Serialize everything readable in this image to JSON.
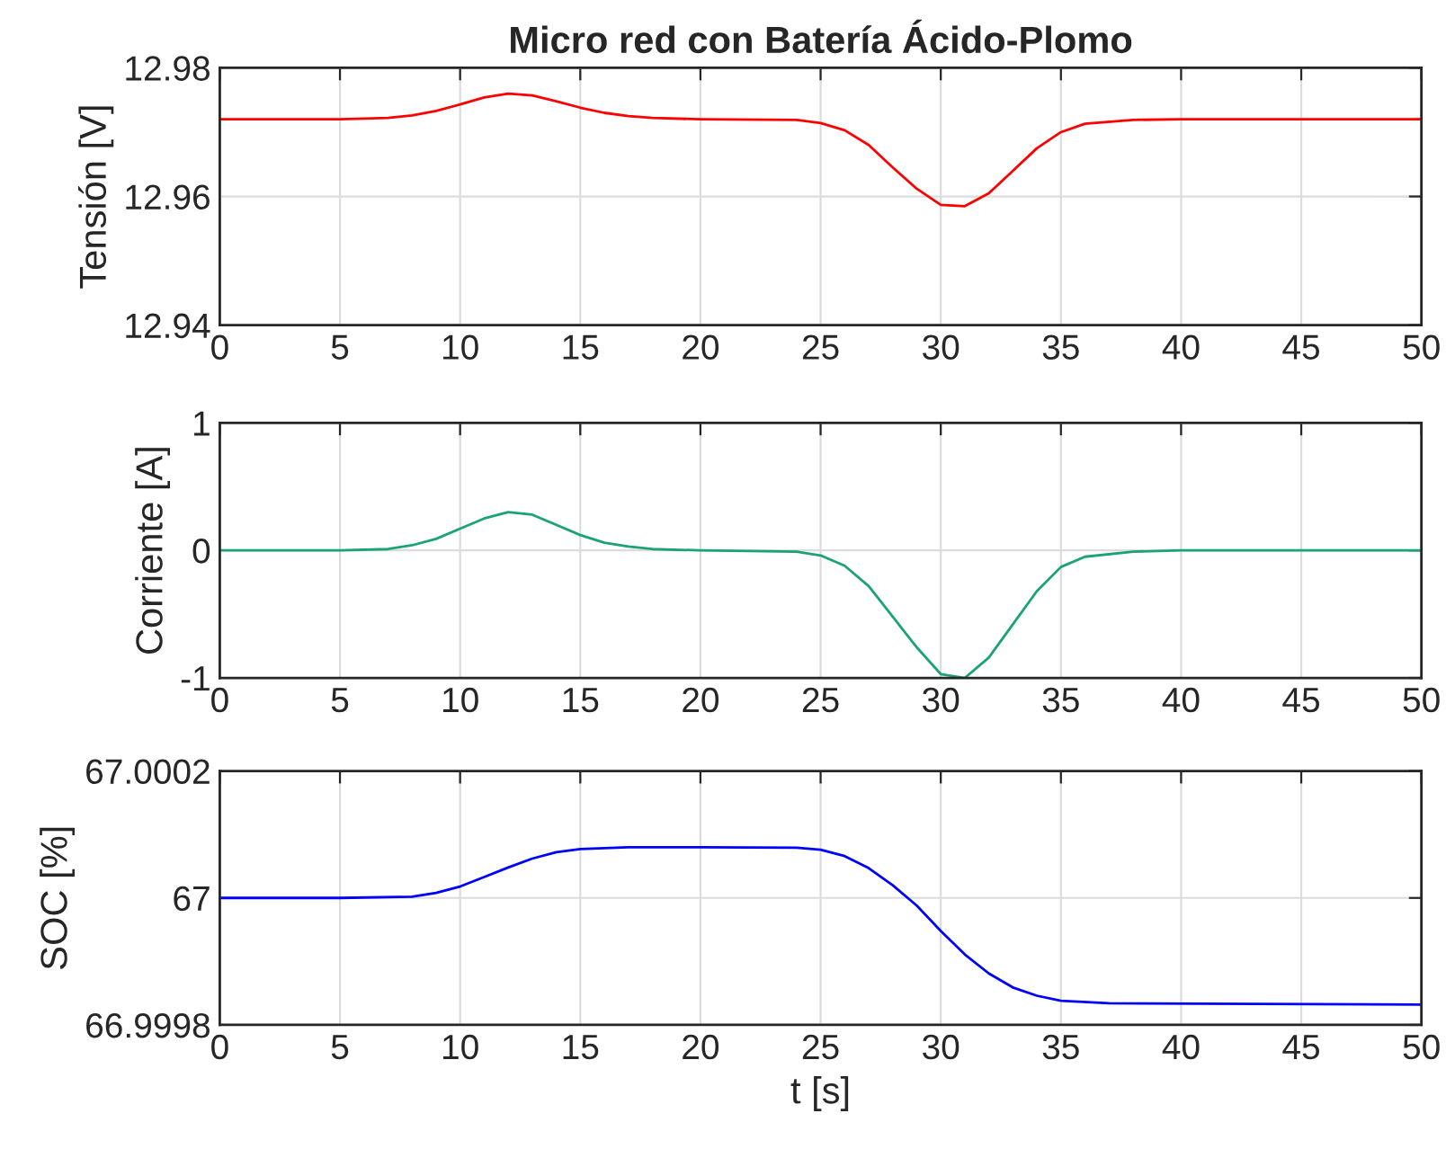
{
  "chart_data": [
    {
      "type": "line",
      "title": "Micro red con Batería Ácido-Plomo",
      "ylabel": "Tensión [V]",
      "xlim": [
        0,
        50
      ],
      "xticks": [
        0,
        5,
        10,
        15,
        20,
        25,
        30,
        35,
        40,
        45,
        50
      ],
      "ylim": [
        12.94,
        12.98
      ],
      "yticks": [
        12.94,
        12.96,
        12.98
      ],
      "grid": true,
      "x": [
        0,
        5,
        7,
        8,
        9,
        10,
        11,
        12,
        13,
        14,
        15,
        16,
        17,
        18,
        20,
        24,
        25,
        26,
        27,
        28,
        29,
        30,
        31,
        32,
        33,
        34,
        35,
        36,
        38,
        40,
        50
      ],
      "series": [
        {
          "color": "#ff0000",
          "values": [
            12.972,
            12.972,
            12.9722,
            12.9726,
            12.9733,
            12.9743,
            12.9754,
            12.976,
            12.9757,
            12.9748,
            12.9738,
            12.973,
            12.9725,
            12.9722,
            12.972,
            12.9719,
            12.9714,
            12.9703,
            12.968,
            12.9645,
            12.9612,
            12.9587,
            12.9585,
            12.9605,
            12.964,
            12.9675,
            12.97,
            12.9713,
            12.9719,
            12.972,
            12.972
          ]
        }
      ]
    },
    {
      "type": "line",
      "ylabel": "Corriente [A]",
      "xlim": [
        0,
        50
      ],
      "xticks": [
        0,
        5,
        10,
        15,
        20,
        25,
        30,
        35,
        40,
        45,
        50
      ],
      "ylim": [
        -1,
        1
      ],
      "yticks": [
        -1,
        0,
        1
      ],
      "grid": true,
      "x": [
        0,
        5,
        7,
        8,
        9,
        10,
        11,
        12,
        13,
        14,
        15,
        16,
        17,
        18,
        20,
        24,
        25,
        26,
        27,
        28,
        29,
        30,
        31,
        32,
        33,
        34,
        35,
        36,
        38,
        40,
        50
      ],
      "series": [
        {
          "color": "#1aa377",
          "values": [
            0,
            0,
            0.01,
            0.04,
            0.09,
            0.17,
            0.25,
            0.3,
            0.28,
            0.2,
            0.12,
            0.06,
            0.03,
            0.01,
            0,
            -0.01,
            -0.04,
            -0.12,
            -0.28,
            -0.52,
            -0.76,
            -0.97,
            -1.0,
            -0.84,
            -0.58,
            -0.32,
            -0.13,
            -0.05,
            -0.01,
            0,
            0
          ]
        }
      ]
    },
    {
      "type": "line",
      "ylabel": "SOC [%]",
      "xlabel": "t [s]",
      "xlim": [
        0,
        50
      ],
      "xticks": [
        0,
        5,
        10,
        15,
        20,
        25,
        30,
        35,
        40,
        45,
        50
      ],
      "ylim": [
        66.9998,
        67.0002
      ],
      "yticks": [
        66.9998,
        67,
        67.0002
      ],
      "grid": true,
      "x": [
        0,
        5,
        8,
        9,
        10,
        11,
        12,
        13,
        14,
        15,
        17,
        20,
        24,
        25,
        26,
        27,
        28,
        29,
        30,
        31,
        32,
        33,
        34,
        35,
        37,
        50
      ],
      "series": [
        {
          "color": "#0000ff",
          "values": [
            67,
            67,
            67.000002,
            67.000008,
            67.000018,
            67.000033,
            67.000048,
            67.000062,
            67.000072,
            67.000077,
            67.00008,
            67.00008,
            67.000079,
            67.000076,
            67.000066,
            67.000047,
            67.00002,
            66.999988,
            66.999948,
            66.999911,
            66.999881,
            66.999859,
            66.999846,
            66.999838,
            66.999834,
            66.999832
          ]
        }
      ]
    }
  ]
}
